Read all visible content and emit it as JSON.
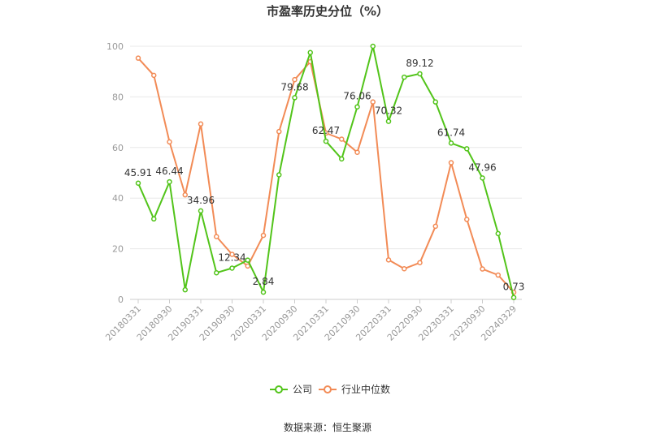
{
  "chart_data": {
    "type": "line",
    "title": "市盈率历史分位（%）",
    "source": "数据来源：恒生聚源",
    "ylim": [
      0,
      100
    ],
    "yticks": [
      0,
      20,
      40,
      60,
      80,
      100
    ],
    "grid": true,
    "legend_position": "bottom",
    "x": [
      "20180331",
      "20180630",
      "20180930",
      "20181231",
      "20190331",
      "20190630",
      "20190930",
      "20191231",
      "20200331",
      "20200630",
      "20200930",
      "20201231",
      "20210331",
      "20210630",
      "20210930",
      "20211231",
      "20220331",
      "20220630",
      "20220930",
      "20221231",
      "20230331",
      "20230630",
      "20230930",
      "20231231",
      "20240329"
    ],
    "xtick_labels": [
      "20180331",
      "20180930",
      "20190331",
      "20190930",
      "20200331",
      "20200930",
      "20210331",
      "20210930",
      "20220331",
      "20220930",
      "20230331",
      "20230930",
      "20240329"
    ],
    "series": [
      {
        "name": "公司",
        "color": "#52c41a",
        "values": [
          45.91,
          31.8,
          46.44,
          3.8,
          34.96,
          10.5,
          12.34,
          15.5,
          2.84,
          49.2,
          79.68,
          97.5,
          62.47,
          55.5,
          76.06,
          100,
          70.32,
          87.8,
          89.12,
          78.0,
          61.74,
          59.5,
          47.96,
          26.0,
          0.73
        ],
        "labels": {
          "0": "45.91",
          "2": "46.44",
          "4": "34.96",
          "6": "12.34",
          "8": "2.84",
          "10": "79.68",
          "12": "62.47",
          "14": "76.06",
          "16": "70.32",
          "18": "89.12",
          "20": "61.74",
          "22": "47.96",
          "24": "0.73"
        }
      },
      {
        "name": "行业中位数",
        "color": "#f28b56",
        "values": [
          95.3,
          88.5,
          62.2,
          41.3,
          69.3,
          24.8,
          17.8,
          13.2,
          25.3,
          66.3,
          86.8,
          93.9,
          65.7,
          63.3,
          58.1,
          78.0,
          15.6,
          12.1,
          14.5,
          28.9,
          54.0,
          31.6,
          12.0,
          9.6,
          2.8
        ]
      }
    ]
  }
}
